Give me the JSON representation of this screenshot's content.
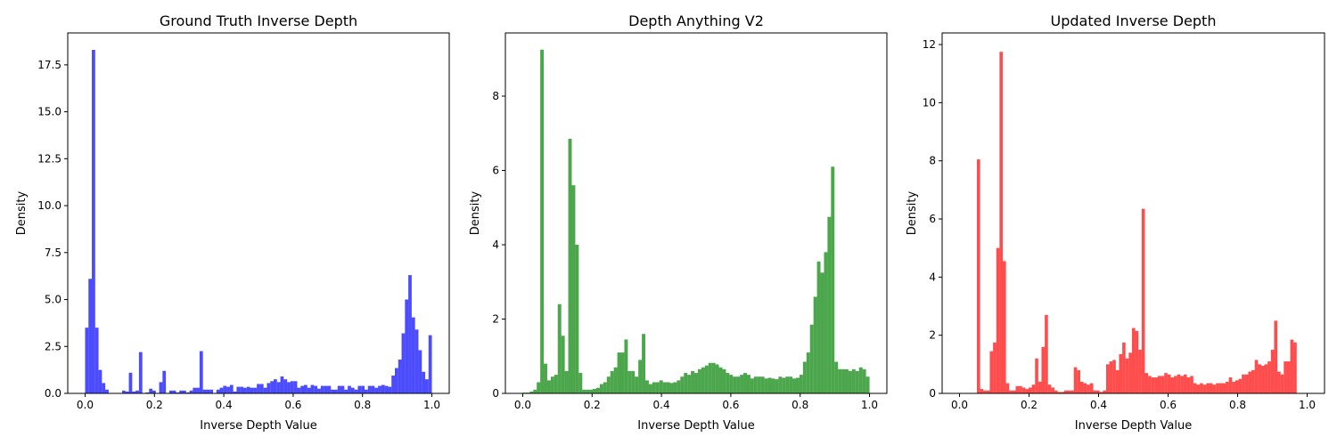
{
  "chart_data": [
    {
      "type": "bar",
      "title": "Ground Truth Inverse Depth",
      "xlabel": "Inverse Depth Value",
      "ylabel": "Density",
      "xlim": [
        -0.05,
        1.05
      ],
      "ylim": [
        0,
        19.2
      ],
      "xticks": [
        "0.0",
        "0.2",
        "0.4",
        "0.6",
        "0.8",
        "1.0"
      ],
      "yticks": [
        "0.0",
        "2.5",
        "5.0",
        "7.5",
        "10.0",
        "12.5",
        "15.0",
        "17.5"
      ],
      "color": "#0000ff",
      "bin_range": [
        0.0,
        1.0
      ],
      "values": [
        3.5,
        6.1,
        18.3,
        3.5,
        1.25,
        0.55,
        0.2,
        0,
        0,
        0,
        0,
        0.15,
        0.1,
        1.1,
        0.1,
        0.15,
        2.2,
        0,
        0.05,
        0.25,
        0.15,
        0,
        0.6,
        1.2,
        0,
        0.15,
        0.15,
        0.05,
        0.15,
        0.15,
        0.05,
        0.15,
        0.3,
        0.3,
        2.25,
        0.2,
        0.2,
        0.2,
        0,
        0.2,
        0.3,
        0.4,
        0.35,
        0.45,
        0.1,
        0.35,
        0.35,
        0.3,
        0.35,
        0.3,
        0.3,
        0.5,
        0.5,
        0.3,
        0.55,
        0.65,
        0.75,
        0.6,
        0.9,
        0.75,
        0.6,
        0.65,
        0.65,
        0.3,
        0.4,
        0.45,
        0.3,
        0.45,
        0.4,
        0.25,
        0.4,
        0.4,
        0.4,
        0.2,
        0.2,
        0.4,
        0.4,
        0.2,
        0.4,
        0.3,
        0.2,
        0.4,
        0.4,
        0.2,
        0.4,
        0.4,
        0.3,
        0.4,
        0.45,
        0.4,
        0.35,
        0.95,
        1.35,
        1.8,
        3.2,
        5.0,
        6.3,
        4.05,
        3.4,
        2.3,
        1.15,
        0.75,
        3.1
      ]
    },
    {
      "type": "bar",
      "title": "Depth Anything V2",
      "xlabel": "Inverse Depth Value",
      "ylabel": "Density",
      "xlim": [
        -0.05,
        1.05
      ],
      "ylim": [
        0,
        9.7
      ],
      "xticks": [
        "0.0",
        "0.2",
        "0.4",
        "0.6",
        "0.8",
        "1.0"
      ],
      "yticks": [
        "0",
        "2",
        "4",
        "6",
        "8"
      ],
      "color": "#008000",
      "bin_range": [
        0.0,
        1.0
      ],
      "values": [
        0.02,
        0.02,
        0.05,
        0.1,
        0.3,
        9.25,
        0.8,
        0.35,
        0.45,
        0.5,
        2.4,
        1.55,
        0.6,
        6.85,
        5.6,
        4.0,
        0.55,
        0.1,
        0.1,
        0.1,
        0.12,
        0.15,
        0.25,
        0.3,
        0.45,
        0.6,
        0.7,
        1.1,
        1.1,
        1.45,
        0.6,
        0.6,
        0.45,
        0.9,
        1.6,
        0.35,
        0.25,
        0.3,
        0.3,
        0.35,
        0.3,
        0.3,
        0.28,
        0.3,
        0.35,
        0.45,
        0.55,
        0.5,
        0.6,
        0.55,
        0.65,
        0.7,
        0.75,
        0.82,
        0.82,
        0.78,
        0.7,
        0.65,
        0.55,
        0.5,
        0.45,
        0.45,
        0.5,
        0.55,
        0.5,
        0.4,
        0.45,
        0.45,
        0.45,
        0.4,
        0.42,
        0.4,
        0.38,
        0.45,
        0.42,
        0.45,
        0.45,
        0.4,
        0.42,
        0.5,
        0.85,
        1.1,
        1.85,
        2.6,
        3.55,
        3.25,
        3.8,
        4.75,
        6.1,
        0.85,
        0.65,
        0.65,
        0.65,
        0.6,
        0.65,
        0.6,
        0.7,
        0.65,
        0.45
      ]
    },
    {
      "type": "bar",
      "title": "Updated Inverse Depth",
      "xlabel": "Inverse Depth Value",
      "ylabel": "Density",
      "xlim": [
        -0.05,
        1.05
      ],
      "ylim": [
        0,
        12.4
      ],
      "xticks": [
        "0.0",
        "0.2",
        "0.4",
        "0.6",
        "0.8",
        "1.0"
      ],
      "yticks": [
        "0",
        "2",
        "4",
        "6",
        "8",
        "10",
        "12"
      ],
      "color": "#ff0000",
      "bin_range": [
        0.05,
        0.97
      ],
      "values": [
        8.05,
        0.15,
        0.1,
        0.1,
        1.45,
        1.75,
        5.0,
        11.75,
        4.55,
        0.35,
        0.1,
        0.1,
        0.25,
        0.25,
        0.2,
        0.15,
        0.2,
        0.3,
        1.2,
        0.4,
        1.6,
        2.7,
        0.3,
        0.2,
        0.1,
        0.05,
        0.05,
        0.1,
        0.1,
        0.1,
        0.9,
        0.8,
        0.4,
        0.35,
        0.3,
        0.35,
        0.1,
        0.1,
        0.05,
        0.1,
        1.0,
        1.1,
        1.15,
        0.8,
        1.35,
        1.75,
        1.2,
        1.4,
        2.25,
        2.15,
        1.5,
        6.35,
        0.7,
        0.6,
        0.55,
        0.55,
        0.6,
        0.6,
        0.7,
        0.65,
        0.55,
        0.6,
        0.65,
        0.6,
        0.65,
        0.55,
        0.6,
        0.35,
        0.3,
        0.35,
        0.3,
        0.35,
        0.35,
        0.3,
        0.35,
        0.35,
        0.35,
        0.4,
        0.55,
        0.4,
        0.45,
        0.5,
        0.65,
        0.65,
        0.75,
        0.8,
        1.15,
        1.0,
        0.95,
        1.0,
        1.1,
        1.5,
        2.5,
        0.75,
        0.65,
        1.1,
        1.1,
        1.85,
        1.75
      ]
    }
  ]
}
